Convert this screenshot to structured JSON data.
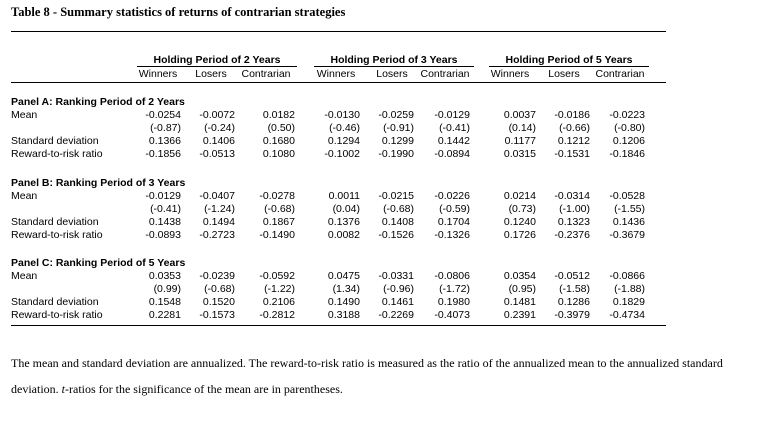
{
  "title": "Table 8 - Summary statistics of returns of contrarian strategies",
  "groups": [
    "Holding Period of 2 Years",
    "Holding Period of 3 Years",
    "Holding Period of 5 Years"
  ],
  "subheaders": [
    "Winners",
    "Losers",
    "Contrarian"
  ],
  "row_labels": [
    "Mean",
    "",
    "Standard deviation",
    "Reward-to-risk ratio"
  ],
  "panels": [
    {
      "name": "Panel A: Ranking Period of 2 Years",
      "rows": [
        [
          "-0.0254",
          "-0.0072",
          "0.0182",
          "-0.0130",
          "-0.0259",
          "-0.0129",
          "0.0037",
          "-0.0186",
          "-0.0223"
        ],
        [
          "(-0.87)",
          "(-0.24)",
          "(0.50)",
          "(-0.46)",
          "(-0.91)",
          "(-0.41)",
          "(0.14)",
          "(-0.66)",
          "(-0.80)"
        ],
        [
          "0.1366",
          "0.1406",
          "0.1680",
          "0.1294",
          "0.1299",
          "0.1442",
          "0.1177",
          "0.1212",
          "0.1206"
        ],
        [
          "-0.1856",
          "-0.0513",
          "0.1080",
          "-0.1002",
          "-0.1990",
          "-0.0894",
          "0.0315",
          "-0.1531",
          "-0.1846"
        ]
      ]
    },
    {
      "name": "Panel B: Ranking Period of 3 Years",
      "rows": [
        [
          "-0.0129",
          "-0.0407",
          "-0.0278",
          "0.0011",
          "-0.0215",
          "-0.0226",
          "0.0214",
          "-0.0314",
          "-0.0528"
        ],
        [
          "(-0.41)",
          "(-1.24)",
          "(-0.68)",
          "(0.04)",
          "(-0.68)",
          "(-0.59)",
          "(0.73)",
          "(-1.00)",
          "(-1.55)"
        ],
        [
          "0.1438",
          "0.1494",
          "0.1867",
          "0.1376",
          "0.1408",
          "0.1704",
          "0.1240",
          "0.1323",
          "0.1436"
        ],
        [
          "-0.0893",
          "-0.2723",
          "-0.1490",
          "0.0082",
          "-0.1526",
          "-0.1326",
          "0.1726",
          "-0.2376",
          "-0.3679"
        ]
      ]
    },
    {
      "name": "Panel C: Ranking Period of 5 Years",
      "rows": [
        [
          "0.0353",
          "-0.0239",
          "-0.0592",
          "0.0475",
          "-0.0331",
          "-0.0806",
          "0.0354",
          "-0.0512",
          "-0.0866"
        ],
        [
          "(0.99)",
          "(-0.68)",
          "(-1.22)",
          "(1.34)",
          "(-0.96)",
          "(-1.72)",
          "(0.95)",
          "(-1.58)",
          "(-1.88)"
        ],
        [
          "0.1548",
          "0.1520",
          "0.2106",
          "0.1490",
          "0.1461",
          "0.1980",
          "0.1481",
          "0.1286",
          "0.1829"
        ],
        [
          "0.2281",
          "-0.1573",
          "-0.2812",
          "0.3188",
          "-0.2269",
          "-0.4073",
          "0.2391",
          "-0.3979",
          "-0.4734"
        ]
      ]
    }
  ],
  "note": {
    "part1": "The mean and standard deviation are annualized. The reward-to-risk ratio is measured as the ratio of the annualized mean to the annualized standard deviation. ",
    "t_symbol": "t",
    "part2": "-ratios for the significance of the mean are in parentheses."
  }
}
